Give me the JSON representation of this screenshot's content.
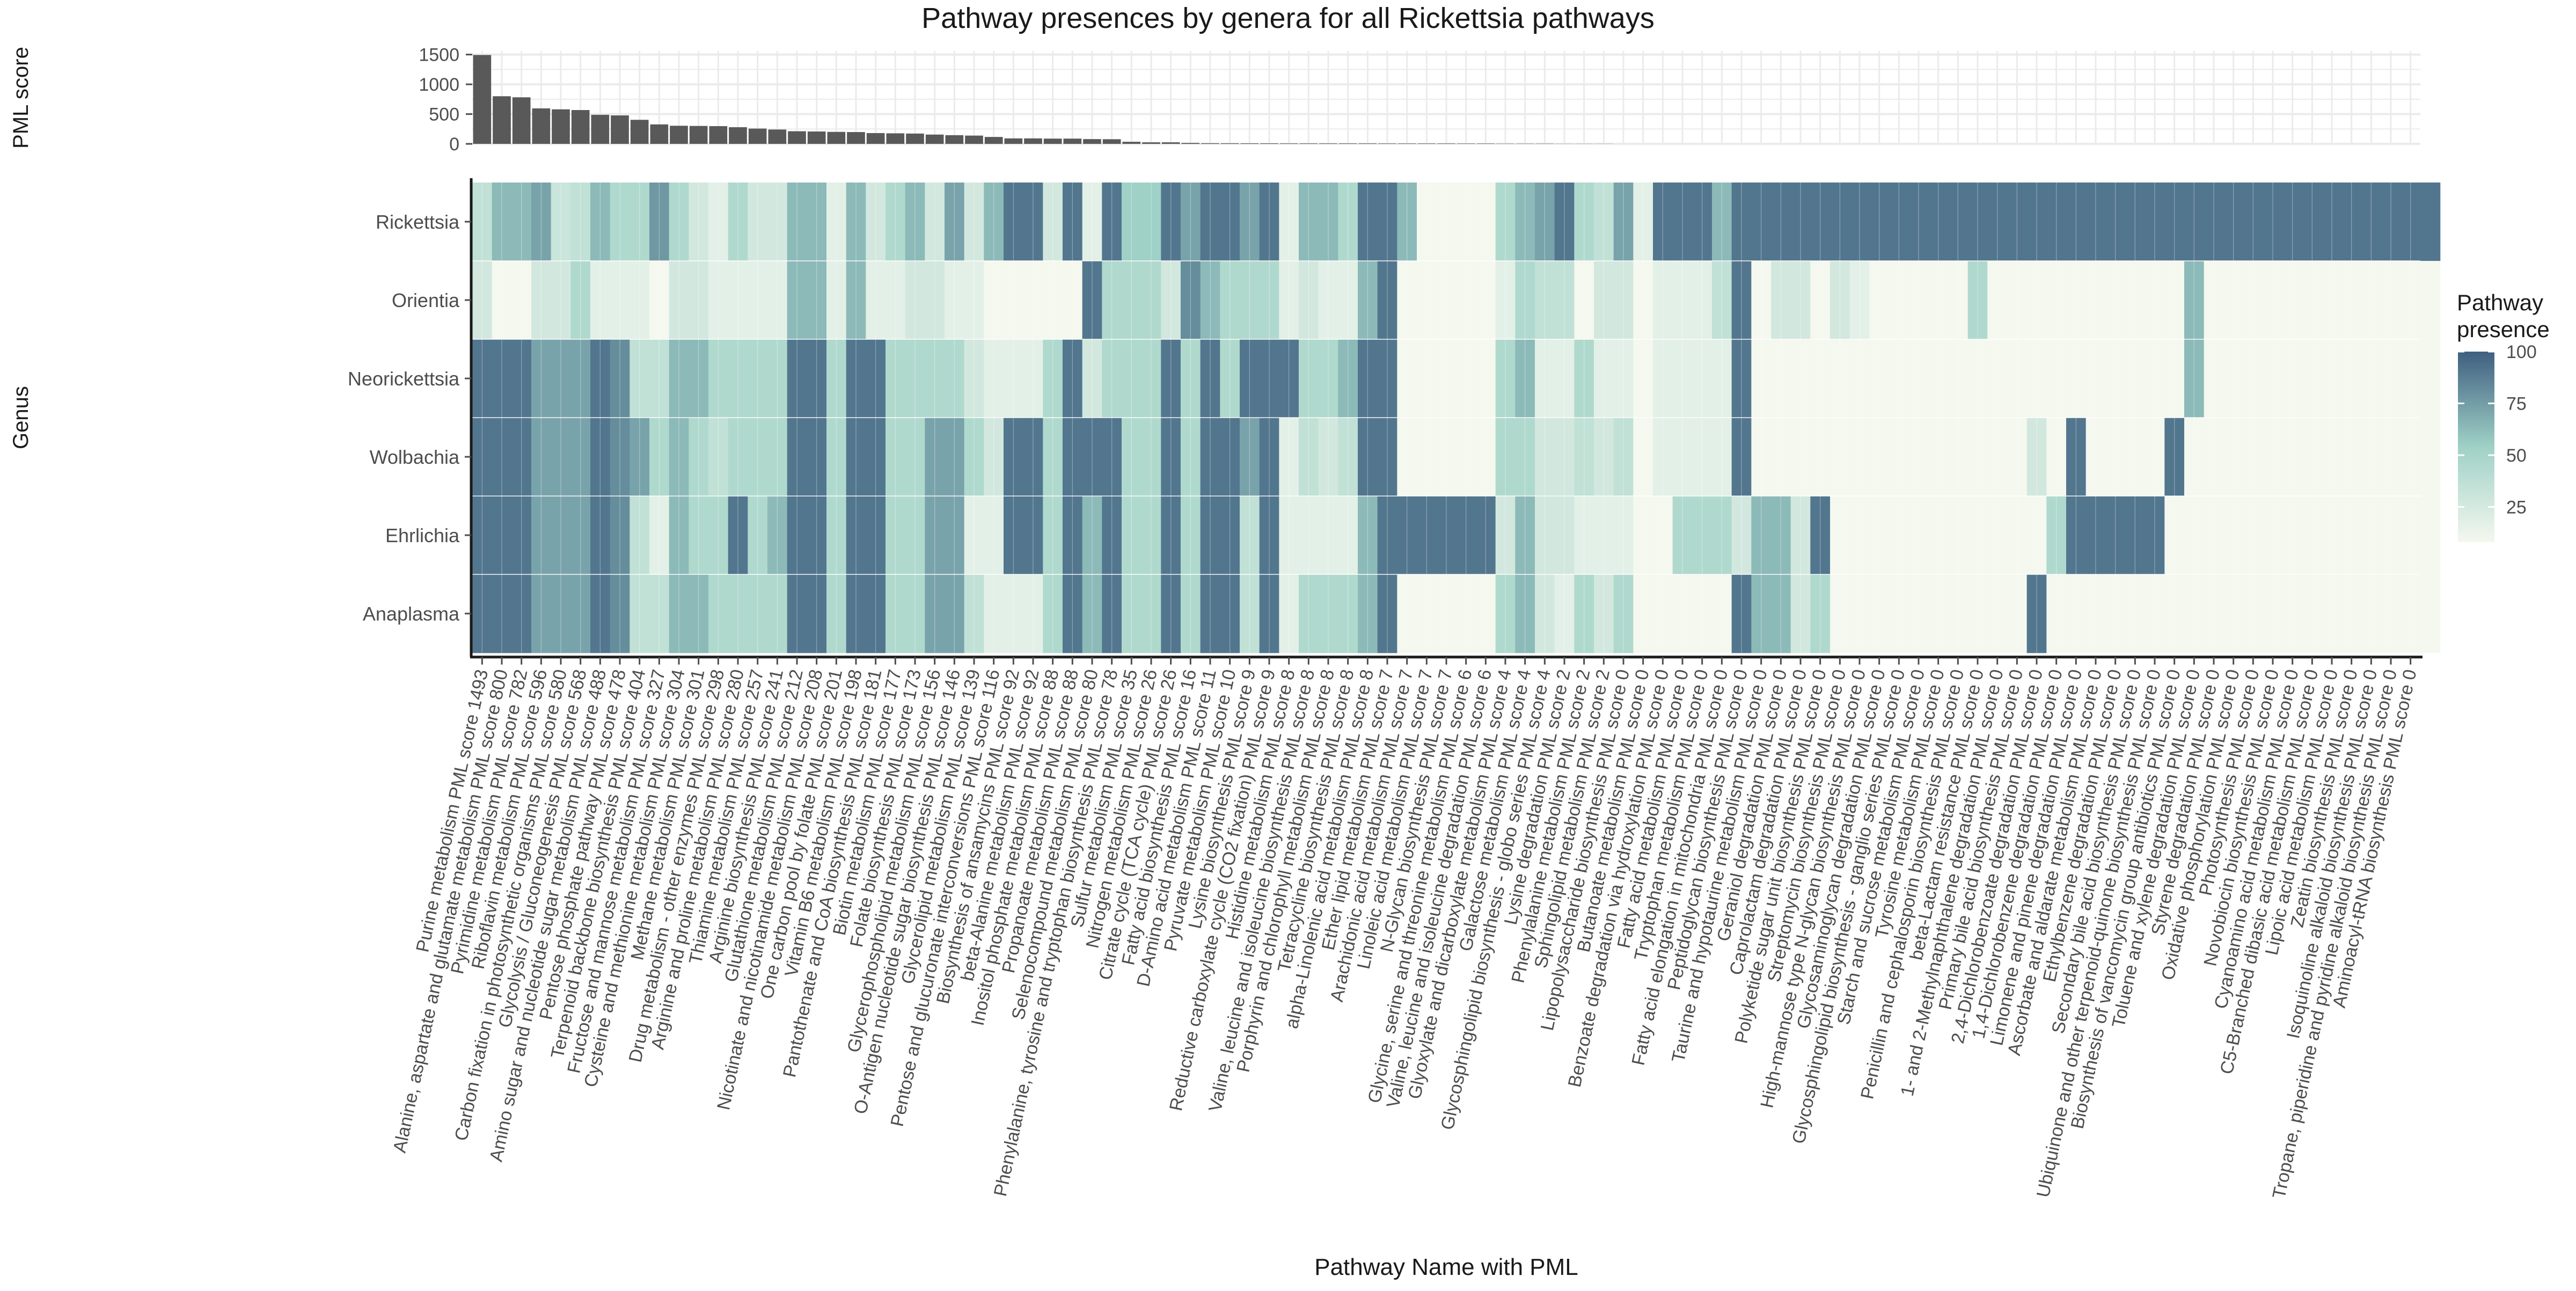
{
  "chart_data": {
    "type": "heatmap",
    "title": "Pathway presences by genera for all Rickettsia pathways",
    "xlabel": "Pathway Name with PML",
    "ylabel": "Genus",
    "bar_ylabel": "PML score",
    "bar_yticks": [
      "0",
      "500",
      "1000",
      "1500"
    ],
    "bar_ylim": [
      0,
      1560
    ],
    "legend_title": "Pathway presence",
    "legend_ticks": [
      "25",
      "50",
      "75",
      "100"
    ],
    "legend_position": "right",
    "color_low": "#f4f8ef",
    "color_mid": "#9fd1c6",
    "color_high": "#3f5f80",
    "bar_color": "#595959",
    "grid": true,
    "genera": [
      "Rickettsia",
      "Orientia",
      "Neorickettsia",
      "Wolbachia",
      "Ehrlichia",
      "Anaplasma"
    ],
    "pathways": [
      {
        "label": "Purine metabolism PML score 1493",
        "score": 1493
      },
      {
        "label": "Alanine, aspartate and glutamate metabolism PML score 800",
        "score": 800
      },
      {
        "label": "Pyrimidine metabolism PML score 782",
        "score": 782
      },
      {
        "label": "Riboflavin metabolism PML score 596",
        "score": 596
      },
      {
        "label": "Carbon fixation in photosynthetic organisms PML score 580",
        "score": 580
      },
      {
        "label": "Glycolysis / Gluconeogenesis PML score 568",
        "score": 568
      },
      {
        "label": "Amino sugar and nucleotide sugar metabolism PML score 488",
        "score": 488
      },
      {
        "label": "Pentose phosphate pathway PML score 478",
        "score": 478
      },
      {
        "label": "Terpenoid backbone biosynthesis PML score 404",
        "score": 404
      },
      {
        "label": "Fructose and mannose metabolism PML score 327",
        "score": 327
      },
      {
        "label": "Cysteine and methionine metabolism PML score 304",
        "score": 304
      },
      {
        "label": "Methane metabolism PML score 301",
        "score": 301
      },
      {
        "label": "Drug metabolism - other enzymes PML score 298",
        "score": 298
      },
      {
        "label": "Arginine and proline metabolism PML score 280",
        "score": 280
      },
      {
        "label": "Thiamine metabolism PML score 257",
        "score": 257
      },
      {
        "label": "Arginine biosynthesis PML score 241",
        "score": 241
      },
      {
        "label": "Glutathione metabolism PML score 212",
        "score": 212
      },
      {
        "label": "Nicotinate and nicotinamide metabolism PML score 208",
        "score": 208
      },
      {
        "label": "One carbon pool by folate PML score 201",
        "score": 201
      },
      {
        "label": "Vitamin B6 metabolism PML score 198",
        "score": 198
      },
      {
        "label": "Pantothenate and CoA biosynthesis PML score 181",
        "score": 181
      },
      {
        "label": "Biotin metabolism PML score 177",
        "score": 177
      },
      {
        "label": "Folate biosynthesis PML score 173",
        "score": 173
      },
      {
        "label": "Glycerophospholipid metabolism PML score 156",
        "score": 156
      },
      {
        "label": "O-Antigen nucleotide sugar biosynthesis PML score 146",
        "score": 146
      },
      {
        "label": "Glycerolipid metabolism PML score 139",
        "score": 139
      },
      {
        "label": "Pentose and glucuronate interconversions PML score 116",
        "score": 116
      },
      {
        "label": "Biosynthesis of ansamycins PML score 92",
        "score": 92
      },
      {
        "label": "beta-Alanine metabolism PML score 92",
        "score": 92
      },
      {
        "label": "Inositol phosphate metabolism PML score 88",
        "score": 88
      },
      {
        "label": "Propanoate metabolism PML score 88",
        "score": 88
      },
      {
        "label": "Selenocompound metabolism PML score 80",
        "score": 80
      },
      {
        "label": "Phenylalanine, tyrosine and tryptophan biosynthesis PML score 78",
        "score": 78
      },
      {
        "label": "Sulfur metabolism PML score 35",
        "score": 35
      },
      {
        "label": "Nitrogen metabolism PML score 26",
        "score": 26
      },
      {
        "label": "Citrate cycle (TCA cycle) PML score 26",
        "score": 26
      },
      {
        "label": "Fatty acid biosynthesis PML score 16",
        "score": 16
      },
      {
        "label": "D-Amino acid metabolism PML score 11",
        "score": 11
      },
      {
        "label": "Pyruvate metabolism PML score 10",
        "score": 10
      },
      {
        "label": "Lysine biosynthesis PML score 9",
        "score": 9
      },
      {
        "label": "Reductive carboxylate cycle (CO2 fixation) PML score 9",
        "score": 9
      },
      {
        "label": "Histidine metabolism PML score 8",
        "score": 8
      },
      {
        "label": "Valine, leucine and isoleucine biosynthesis PML score 8",
        "score": 8
      },
      {
        "label": "Porphyrin and chlorophyll metabolism PML score 8",
        "score": 8
      },
      {
        "label": "Tetracycline biosynthesis PML score 8",
        "score": 8
      },
      {
        "label": "alpha-Linolenic acid metabolism PML score 8",
        "score": 8
      },
      {
        "label": "Ether lipid metabolism PML score 7",
        "score": 7
      },
      {
        "label": "Arachidonic acid metabolism PML score 7",
        "score": 7
      },
      {
        "label": "Linoleic acid metabolism PML score 7",
        "score": 7
      },
      {
        "label": "N-Glycan biosynthesis PML score 7",
        "score": 7
      },
      {
        "label": "Glycine, serine and threonine metabolism PML score 6",
        "score": 6
      },
      {
        "label": "Valine, leucine and isoleucine degradation PML score 6",
        "score": 6
      },
      {
        "label": "Glyoxylate and dicarboxylate metabolism PML score 4",
        "score": 4
      },
      {
        "label": "Galactose metabolism PML score 4",
        "score": 4
      },
      {
        "label": "Glycosphingolipid biosynthesis - globo series PML score 4",
        "score": 4
      },
      {
        "label": "Lysine degradation PML score 2",
        "score": 2
      },
      {
        "label": "Phenylalanine metabolism PML score 2",
        "score": 2
      },
      {
        "label": "Sphingolipid metabolism PML score 2",
        "score": 2
      },
      {
        "label": "Lipopolysaccharide biosynthesis PML score 0",
        "score": 0
      },
      {
        "label": "Butanoate metabolism PML score 0",
        "score": 0
      },
      {
        "label": "Benzoate degradation via hydroxylation PML score 0",
        "score": 0
      },
      {
        "label": "Fatty acid metabolism PML score 0",
        "score": 0
      },
      {
        "label": "Tryptophan metabolism PML score 0",
        "score": 0
      },
      {
        "label": "Fatty acid elongation in mitochondria PML score 0",
        "score": 0
      },
      {
        "label": "Peptidoglycan biosynthesis PML score 0",
        "score": 0
      },
      {
        "label": "Taurine and hypotaurine metabolism PML score 0",
        "score": 0
      },
      {
        "label": "Geraniol degradation PML score 0",
        "score": 0
      },
      {
        "label": "Caprolactam degradation PML score 0",
        "score": 0
      },
      {
        "label": "Polyketide sugar unit biosynthesis PML score 0",
        "score": 0
      },
      {
        "label": "Streptomycin biosynthesis PML score 0",
        "score": 0
      },
      {
        "label": "High-mannose type N-glycan biosynthesis PML score 0",
        "score": 0
      },
      {
        "label": "Glycosaminoglycan degradation PML score 0",
        "score": 0
      },
      {
        "label": "Glycosphingolipid biosynthesis - ganglio series PML score 0",
        "score": 0
      },
      {
        "label": "Starch and sucrose metabolism PML score 0",
        "score": 0
      },
      {
        "label": "Tyrosine metabolism PML score 0",
        "score": 0
      },
      {
        "label": "Penicillin and cephalosporin biosynthesis PML score 0",
        "score": 0
      },
      {
        "label": "beta-Lactam resistance PML score 0",
        "score": 0
      },
      {
        "label": "1- and 2-Methylnaphthalene degradation PML score 0",
        "score": 0
      },
      {
        "label": "Primary bile acid biosynthesis PML score 0",
        "score": 0
      },
      {
        "label": "2,4-Dichlorobenzoate degradation PML score 0",
        "score": 0
      },
      {
        "label": "1,4-Dichlorobenzene degradation PML score 0",
        "score": 0
      },
      {
        "label": "Limonene and pinene degradation PML score 0",
        "score": 0
      },
      {
        "label": "Ascorbate and aldarate metabolism PML score 0",
        "score": 0
      },
      {
        "label": "Ethylbenzene degradation PML score 0",
        "score": 0
      },
      {
        "label": "Secondary bile acid biosynthesis PML score 0",
        "score": 0
      },
      {
        "label": "Ubiquinone and other terpenoid-quinone biosynthesis PML score 0",
        "score": 0
      },
      {
        "label": "Biosynthesis of vancomycin group antibiotics PML score 0",
        "score": 0
      },
      {
        "label": "Toluene and xylene degradation PML score 0",
        "score": 0
      },
      {
        "label": "Styrene degradation PML score 0",
        "score": 0
      },
      {
        "label": "Oxidative phosphorylation PML score 0",
        "score": 0
      },
      {
        "label": "Photosynthesis PML score 0",
        "score": 0
      },
      {
        "label": "Novobiocin biosynthesis PML score 0",
        "score": 0
      },
      {
        "label": "Cyanoamino acid metabolism PML score 0",
        "score": 0
      },
      {
        "label": "C5-Branched dibasic acid metabolism PML score 0",
        "score": 0
      },
      {
        "label": "Lipoic acid metabolism PML score 0",
        "score": 0
      },
      {
        "label": "Zeatin biosynthesis PML score 0",
        "score": 0
      },
      {
        "label": "Isoquinoline alkaloid biosynthesis PML score 0",
        "score": 0
      },
      {
        "label": "Tropane, piperidine and pyridine alkaloid biosynthesis PML score 0",
        "score": 0
      },
      {
        "label": "Aminoacyl-tRNA biosynthesis PML score 0",
        "score": 0
      }
    ],
    "presence": [
      [
        30,
        60,
        60,
        70,
        25,
        30,
        60,
        40,
        40,
        75,
        40,
        20,
        10,
        40,
        20,
        20,
        60,
        60,
        10,
        60,
        20,
        40,
        60,
        20,
        70,
        20,
        60,
        90,
        90,
        20,
        90,
        10,
        90,
        50,
        50,
        90,
        70,
        90,
        90,
        70,
        90,
        10,
        60,
        60,
        40,
        90,
        90,
        60,
        0,
        0,
        0,
        0,
        40,
        60,
        70,
        90,
        40,
        30,
        70,
        10,
        90,
        90,
        90,
        60,
        90,
        90,
        90,
        90,
        90,
        90,
        90,
        90,
        90,
        90,
        90,
        90,
        90,
        90,
        90,
        90,
        90,
        90,
        90,
        90,
        90,
        90,
        90,
        90,
        90,
        90,
        90,
        90,
        90,
        90,
        90,
        90,
        90,
        90,
        90,
        90
      ],
      [
        20,
        0,
        0,
        20,
        20,
        40,
        10,
        10,
        10,
        0,
        20,
        20,
        10,
        10,
        10,
        10,
        60,
        60,
        10,
        60,
        10,
        10,
        20,
        20,
        10,
        10,
        0,
        0,
        0,
        0,
        0,
        90,
        40,
        40,
        40,
        20,
        80,
        60,
        40,
        40,
        40,
        10,
        20,
        10,
        10,
        60,
        90,
        0,
        0,
        0,
        0,
        0,
        10,
        40,
        30,
        30,
        0,
        20,
        20,
        0,
        10,
        10,
        10,
        30,
        90,
        0,
        20,
        20,
        0,
        20,
        10,
        0,
        0,
        0,
        0,
        0,
        40,
        0,
        0,
        0,
        0,
        0,
        0,
        0,
        0,
        0,
        0,
        60,
        0,
        0,
        0,
        0,
        0,
        0,
        0,
        0,
        0,
        0,
        0,
        0
      ],
      [
        90,
        90,
        90,
        70,
        70,
        70,
        90,
        80,
        30,
        30,
        60,
        60,
        40,
        40,
        40,
        40,
        90,
        90,
        40,
        90,
        90,
        40,
        40,
        40,
        40,
        20,
        10,
        10,
        10,
        40,
        90,
        20,
        40,
        40,
        40,
        90,
        40,
        90,
        40,
        90,
        90,
        90,
        40,
        40,
        60,
        90,
        90,
        0,
        0,
        0,
        0,
        0,
        40,
        60,
        10,
        10,
        40,
        10,
        10,
        0,
        10,
        10,
        10,
        10,
        90,
        0,
        0,
        0,
        0,
        0,
        0,
        0,
        0,
        0,
        0,
        0,
        0,
        0,
        0,
        0,
        0,
        0,
        0,
        0,
        0,
        0,
        0,
        60,
        0,
        0,
        0,
        0,
        0,
        0,
        0,
        0,
        0,
        0,
        0,
        0
      ],
      [
        90,
        90,
        90,
        70,
        70,
        70,
        90,
        80,
        70,
        40,
        60,
        40,
        30,
        40,
        40,
        40,
        90,
        90,
        40,
        90,
        90,
        40,
        40,
        70,
        70,
        40,
        20,
        90,
        90,
        40,
        90,
        90,
        90,
        40,
        40,
        90,
        40,
        90,
        90,
        70,
        90,
        10,
        30,
        20,
        30,
        90,
        90,
        0,
        0,
        0,
        0,
        0,
        40,
        40,
        20,
        20,
        30,
        20,
        30,
        0,
        10,
        10,
        10,
        10,
        90,
        0,
        0,
        0,
        0,
        0,
        0,
        0,
        0,
        0,
        0,
        0,
        0,
        0,
        0,
        20,
        0,
        90,
        0,
        0,
        0,
        0,
        90,
        0,
        0,
        0,
        0,
        0,
        0,
        0,
        0,
        0,
        0,
        0,
        0,
        0
      ],
      [
        90,
        90,
        90,
        70,
        70,
        70,
        90,
        80,
        30,
        10,
        60,
        40,
        40,
        90,
        40,
        60,
        90,
        90,
        40,
        90,
        90,
        40,
        40,
        70,
        70,
        10,
        10,
        90,
        90,
        40,
        90,
        60,
        90,
        40,
        40,
        90,
        40,
        90,
        90,
        30,
        90,
        10,
        10,
        10,
        10,
        60,
        90,
        90,
        90,
        90,
        90,
        90,
        20,
        60,
        20,
        20,
        10,
        10,
        10,
        0,
        0,
        40,
        40,
        40,
        20,
        60,
        60,
        20,
        90,
        0,
        0,
        0,
        0,
        0,
        0,
        0,
        0,
        0,
        0,
        0,
        40,
        90,
        90,
        90,
        90,
        90,
        0,
        0,
        0,
        0,
        0,
        0,
        0,
        0,
        0,
        0,
        0,
        0,
        0,
        0
      ],
      [
        90,
        90,
        90,
        70,
        70,
        70,
        90,
        80,
        30,
        30,
        60,
        60,
        40,
        40,
        40,
        40,
        90,
        90,
        40,
        90,
        90,
        40,
        40,
        70,
        70,
        30,
        10,
        10,
        10,
        40,
        90,
        60,
        90,
        40,
        40,
        90,
        40,
        90,
        90,
        30,
        90,
        10,
        40,
        40,
        40,
        60,
        90,
        0,
        0,
        0,
        0,
        0,
        40,
        60,
        20,
        10,
        40,
        20,
        40,
        0,
        0,
        0,
        0,
        0,
        90,
        60,
        60,
        20,
        40,
        0,
        0,
        0,
        0,
        0,
        0,
        0,
        0,
        0,
        0,
        90,
        0,
        0,
        0,
        0,
        0,
        0,
        0,
        0,
        0,
        0,
        0,
        0,
        0,
        0,
        0,
        0,
        0,
        0,
        0,
        0
      ]
    ]
  }
}
